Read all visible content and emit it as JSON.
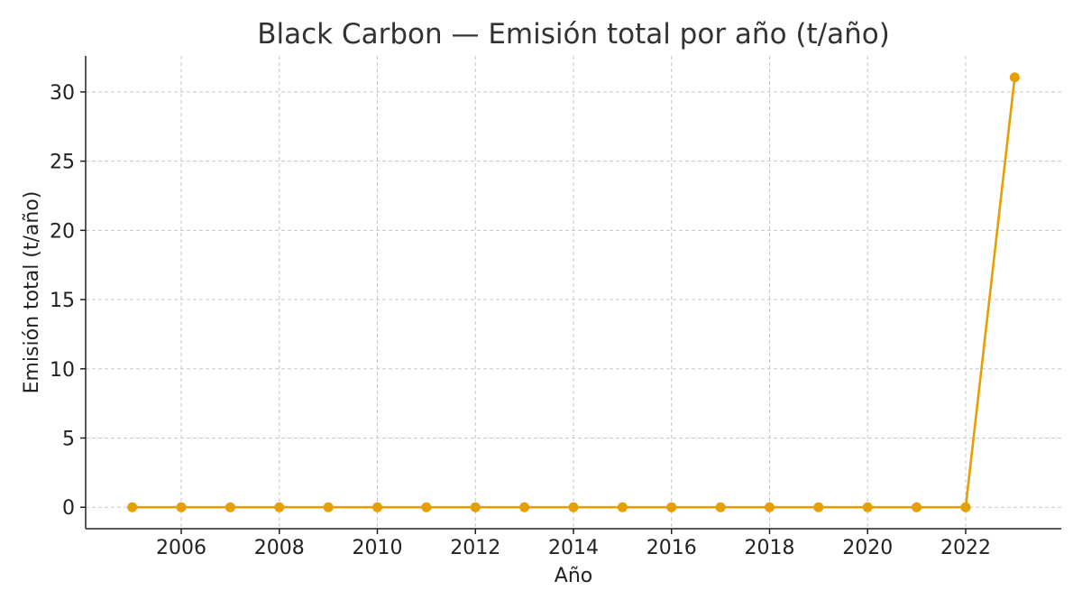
{
  "chart_data": {
    "type": "line",
    "title": "Black Carbon — Emisión total por año (t/año)",
    "xlabel": "Año",
    "ylabel": "Emisión total (t/año)",
    "x": [
      2005,
      2006,
      2007,
      2008,
      2009,
      2010,
      2011,
      2012,
      2013,
      2014,
      2015,
      2016,
      2017,
      2018,
      2019,
      2020,
      2021,
      2022,
      2023
    ],
    "series": [
      {
        "values": [
          0,
          0,
          0,
          0,
          0,
          0,
          0,
          0,
          0,
          0,
          0,
          0,
          0,
          0,
          0,
          0,
          0,
          0,
          31.05
        ],
        "color": "#E69F00"
      }
    ],
    "xticks": [
      2006,
      2008,
      2010,
      2012,
      2014,
      2016,
      2018,
      2020,
      2022
    ],
    "yticks": [
      0,
      5,
      10,
      15,
      20,
      25,
      30
    ],
    "xlim": [
      2004.05,
      2023.95
    ],
    "ylim": [
      -1.55,
      32.6
    ],
    "grid": true,
    "markers": true
  }
}
